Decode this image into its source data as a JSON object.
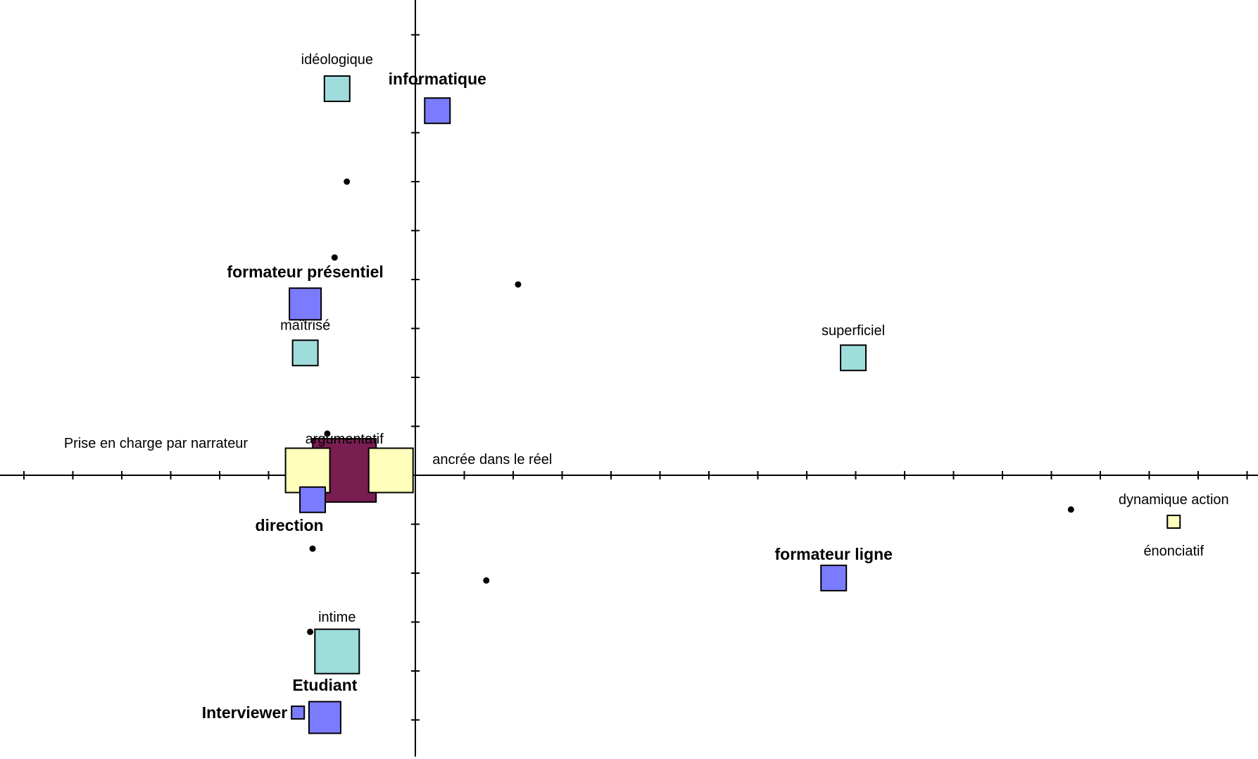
{
  "chart_data": {
    "type": "scatter",
    "title": "",
    "xlabel": "",
    "ylabel": "",
    "xlim": [
      -8.5,
      17.25
    ],
    "ylim": [
      -5.75,
      9.75
    ],
    "grid": false,
    "legend": "none",
    "colors": {
      "blue": "#7b7bff",
      "cyan": "#9fdcdc",
      "yellow": "#ffffbb",
      "maroon": "#7a1e52"
    },
    "points": [
      {
        "label": "idéologique",
        "x": -1.6,
        "y": 7.9,
        "size": 1.0,
        "color": "cyan",
        "bold": false
      },
      {
        "label": "informatique",
        "x": 0.45,
        "y": 7.45,
        "size": 1.0,
        "color": "blue",
        "bold": true
      },
      {
        "label": "formateur présentiel",
        "x": -2.25,
        "y": 3.5,
        "size": 1.25,
        "color": "blue",
        "bold": true
      },
      {
        "label": "maîtrisé",
        "x": -2.25,
        "y": 2.5,
        "size": 1.0,
        "color": "cyan",
        "bold": false
      },
      {
        "label": "superficiel",
        "x": 8.95,
        "y": 2.4,
        "size": 1.0,
        "color": "cyan",
        "bold": false
      },
      {
        "label": "argumentatif",
        "x": -1.45,
        "y": 0.1,
        "size": 2.5,
        "color": "maroon",
        "bold": false
      },
      {
        "label": "direction",
        "x": -2.1,
        "y": -0.5,
        "size": 1.0,
        "color": "blue",
        "bold": true
      },
      {
        "label": "Prise en charge par narrateur",
        "x": -2.2,
        "y": 0.1,
        "size": 1.75,
        "color": "yellow",
        "bold": false
      },
      {
        "label": "ancrée dans le réel",
        "x": -0.5,
        "y": 0.1,
        "size": 1.75,
        "color": "yellow",
        "bold": false
      },
      {
        "label": "dynamique action",
        "x": 15.5,
        "y": -0.95,
        "size": 0.5,
        "color": "yellow",
        "bold": false
      },
      {
        "label": "énonciatif",
        "x": 15.5,
        "y": -0.95,
        "size": 0,
        "color": "yellow",
        "bold": false
      },
      {
        "label": "formateur ligne",
        "x": 8.55,
        "y": -2.1,
        "size": 1.0,
        "color": "blue",
        "bold": true
      },
      {
        "label": "intime",
        "x": -1.6,
        "y": -3.6,
        "size": 1.75,
        "color": "cyan",
        "bold": false
      },
      {
        "label": "Etudiant",
        "x": -1.85,
        "y": -4.95,
        "size": 1.25,
        "color": "blue",
        "bold": true
      },
      {
        "label": "Interviewer",
        "x": -2.4,
        "y": -4.85,
        "size": 0.5,
        "color": "blue",
        "bold": true
      }
    ],
    "dots": [
      {
        "x": -1.4,
        "y": 6.0
      },
      {
        "x": -1.65,
        "y": 4.45
      },
      {
        "x": 2.1,
        "y": 3.9
      },
      {
        "x": -1.8,
        "y": 0.85
      },
      {
        "x": 13.4,
        "y": -0.7
      },
      {
        "x": -2.1,
        "y": -1.5
      },
      {
        "x": 1.45,
        "y": -2.15
      },
      {
        "x": -2.15,
        "y": -3.2
      }
    ]
  }
}
